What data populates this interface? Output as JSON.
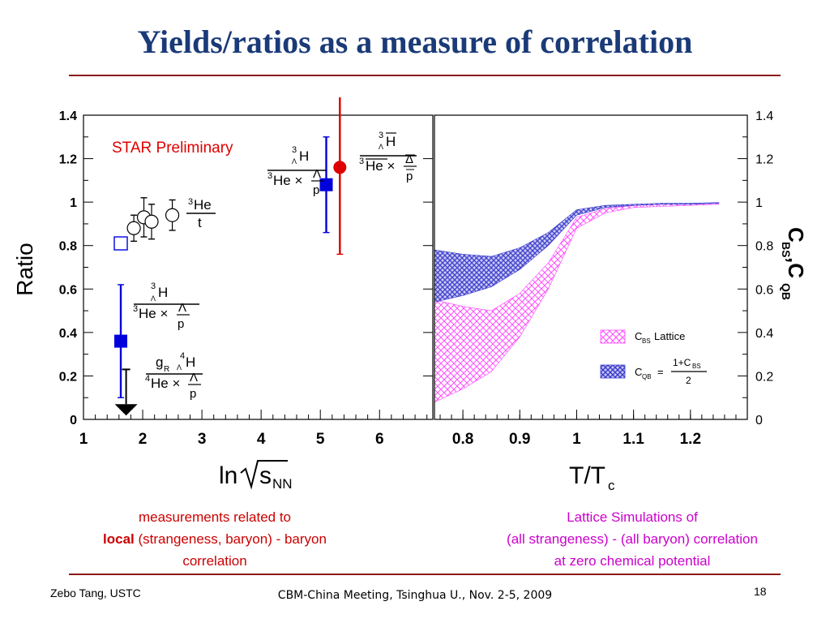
{
  "slide": {
    "title": "Yields/ratios as a measure of correlation",
    "caption_left": {
      "line1": "measurements related to",
      "line2_bold": "local",
      "line2_rest": " (strangeness, baryon) - baryon",
      "line3": "correlation"
    },
    "caption_right": {
      "line1": "Lattice Simulations of",
      "line2": "(all strangeness) - (all baryon) correlation",
      "line3": "at zero chemical potential"
    },
    "footer_author": "Zebo Tang, USTC",
    "footer_meeting": "CBM-China Meeting, Tsinghua U., Nov. 2-5, 2009",
    "page_number": "18",
    "colors": {
      "title": "#1a3a78",
      "rule": "#8b1a1a",
      "star_blue": "#0000dd",
      "star_red": "#dd0000",
      "lattice_magenta": "#ff44ff",
      "lattice_blue": "#3b3bcc"
    }
  },
  "chart_data": [
    {
      "type": "scatter",
      "panel": "left",
      "ylabel": "Ratio",
      "xlabel": "ln√s_NN",
      "xlim": [
        1,
        6.9
      ],
      "ylim": [
        0,
        1.4
      ],
      "xticks": [
        1,
        2,
        3,
        4,
        5,
        6
      ],
      "yticks": [
        0,
        0.2,
        0.4,
        0.6,
        0.8,
        1,
        1.2,
        1.4
      ],
      "annotation": "STAR Preliminary",
      "series": [
        {
          "kind": "open_circle",
          "color": "#000000",
          "points": [
            [
              1.85,
              0.88,
              0.06
            ],
            [
              2.02,
              0.93,
              0.09
            ],
            [
              2.15,
              0.91,
              0.08
            ],
            [
              2.5,
              0.94,
              0.07
            ]
          ],
          "label": "3He / t"
        },
        {
          "kind": "open_square",
          "color": "#0000dd",
          "points": [
            [
              1.63,
              0.81,
              0
            ]
          ]
        },
        {
          "kind": "filled_square",
          "color": "#0000dd",
          "points": [
            [
              1.63,
              0.36,
              0.26
            ],
            [
              5.1,
              1.08,
              0.22
            ]
          ]
        },
        {
          "kind": "filled_circle",
          "color": "#dd0000",
          "points": [
            [
              5.33,
              1.16,
              0.4
            ]
          ]
        },
        {
          "kind": "upper_limit",
          "color": "#000000",
          "points": [
            [
              1.72,
              0.23
            ]
          ]
        }
      ],
      "labels": [
        {
          "kind": "frac",
          "num": "³He",
          "den": "t"
        },
        {
          "kind": "frac",
          "num": "³ΛH",
          "den": "³He × Λ/p"
        },
        {
          "kind": "frac",
          "num": "g_R ⁴ΛH",
          "den": "⁴He × Λ/p"
        },
        {
          "kind": "frac",
          "num": "³ΛH",
          "den": "³He × Λ/p"
        },
        {
          "kind": "frac",
          "num": "³ΛH̄",
          "den": "³H̄e × Λ̄/p̄"
        }
      ]
    },
    {
      "type": "area",
      "panel": "right",
      "xlabel": "T/T_c",
      "ylabel": "C_BS, C_QB",
      "xlim": [
        0.75,
        1.3
      ],
      "ylim": [
        0,
        1.4
      ],
      "xticks": [
        0.8,
        0.9,
        1,
        1.1,
        1.2
      ],
      "yticks": [
        0,
        0.2,
        0.4,
        0.6,
        0.8,
        1,
        1.2,
        1.4
      ],
      "series": [
        {
          "name": "C_BS Lattice",
          "color": "#ff44ff",
          "x": [
            0.75,
            0.8,
            0.85,
            0.9,
            0.95,
            1.0,
            1.05,
            1.1,
            1.15,
            1.2,
            1.25
          ],
          "upper": [
            0.55,
            0.52,
            0.5,
            0.58,
            0.72,
            0.93,
            0.97,
            0.985,
            0.99,
            0.99,
            0.995
          ],
          "lower": [
            0.08,
            0.14,
            0.22,
            0.38,
            0.6,
            0.88,
            0.95,
            0.975,
            0.98,
            0.985,
            0.99
          ]
        },
        {
          "name": "C_QB",
          "formula_num": "1+C_BS",
          "formula_den": "2",
          "color": "#3b3bcc",
          "x": [
            0.75,
            0.8,
            0.85,
            0.9,
            0.95,
            1.0,
            1.05,
            1.1,
            1.15,
            1.2,
            1.25
          ],
          "upper": [
            0.78,
            0.76,
            0.75,
            0.79,
            0.86,
            0.965,
            0.985,
            0.99,
            0.995,
            0.995,
            0.998
          ],
          "lower": [
            0.54,
            0.57,
            0.61,
            0.69,
            0.8,
            0.94,
            0.975,
            0.985,
            0.99,
            0.99,
            0.995
          ]
        }
      ],
      "legend_labels": [
        "C_BS Lattice",
        "C_QB = (1+C_BS)/2"
      ]
    }
  ]
}
